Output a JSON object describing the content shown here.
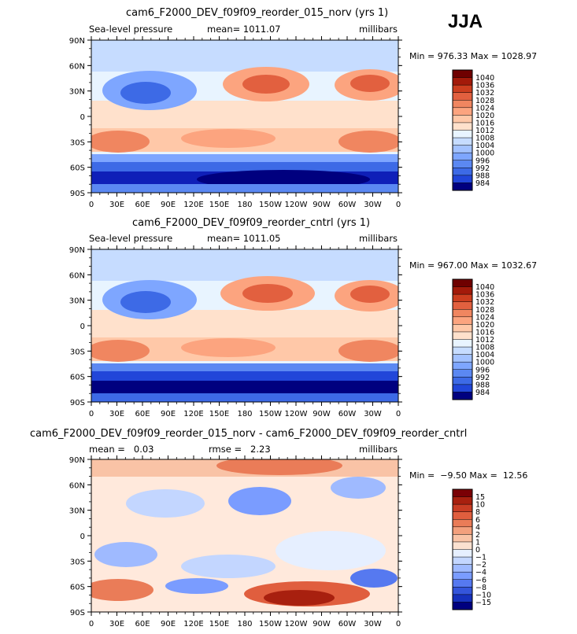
{
  "season": "JJA",
  "colors": {
    "slp_scale": [
      "#e8f4ff",
      "#c6dcff",
      "#a3c2ff",
      "#7ea6ff",
      "#5b88f2",
      "#3d6ae6",
      "#2146d9",
      "#0f1fb8",
      "#00007f",
      "#ffe1cc",
      "#ffc8a8",
      "#fca47f",
      "#f08660",
      "#e2603f",
      "#cc3e1f",
      "#a31a0a",
      "#6f0000"
    ],
    "diff_scale": [
      "#fbe1d0",
      "#f9c3a6",
      "#f3a07d",
      "#ea7c58",
      "#e05e3e",
      "#c93d24",
      "#a8200f",
      "#7a0005",
      "#e6efff",
      "#c3d6ff",
      "#9fbaff",
      "#7a9cff",
      "#5679f0",
      "#3455db",
      "#1631bd",
      "#00007f"
    ]
  },
  "panels": [
    {
      "title": "cam6_F2000_DEV_f09f09_reorder_015_norv (yrs 1)",
      "left_label": "Sea-level pressure",
      "mean_label": "mean= 1011.07",
      "units": "millibars",
      "minmax": "Min = 976.33 Max = 1028.97",
      "colorbar_labels": [
        "1040",
        "1036",
        "1032",
        "1028",
        "1024",
        "1020",
        "1016",
        "1012",
        "1008",
        "1004",
        "1000",
        "996",
        "992",
        "988",
        "984"
      ]
    },
    {
      "title": "cam6_F2000_DEV_f09f09_reorder_cntrl (yrs 1)",
      "left_label": "Sea-level pressure",
      "mean_label": "mean= 1011.05",
      "units": "millibars",
      "minmax": "Min = 967.00 Max = 1032.67",
      "colorbar_labels": [
        "1040",
        "1036",
        "1032",
        "1028",
        "1024",
        "1020",
        "1016",
        "1012",
        "1008",
        "1004",
        "1000",
        "996",
        "992",
        "988",
        "984"
      ]
    },
    {
      "title": "cam6_F2000_DEV_f09f09_reorder_015_norv - cam6_F2000_DEV_f09f09_reorder_cntrl",
      "left_label": "mean =   0.03",
      "mean_label": "rmse =   2.23",
      "units": "millibars",
      "minmax": "Min =  −9.50 Max =  12.56",
      "colorbar_labels": [
        "15",
        "10",
        "8",
        "6",
        "4",
        "2",
        "1",
        "0",
        "−1",
        "−2",
        "−4",
        "−6",
        "−8",
        "−10",
        "−15"
      ]
    }
  ],
  "axes": {
    "lat_labels": [
      "90N",
      "60N",
      "30N",
      "0",
      "30S",
      "60S",
      "90S"
    ],
    "lon_labels": [
      "0",
      "30E",
      "60E",
      "90E",
      "120E",
      "150E",
      "180",
      "150W",
      "120W",
      "90W",
      "60W",
      "30W",
      "0"
    ]
  },
  "chart_data": [
    {
      "type": "heatmap",
      "title": "cam6_F2000_DEV_f09f09_reorder_015_norv (yrs 1)",
      "variable": "Sea-level pressure",
      "units": "millibars",
      "mean": 1011.07,
      "min": 976.33,
      "max": 1028.97,
      "x_range": [
        0,
        360
      ],
      "y_range": [
        -90,
        90
      ],
      "levels": [
        984,
        988,
        992,
        996,
        1000,
        1004,
        1008,
        1012,
        1016,
        1020,
        1024,
        1028,
        1032,
        1036,
        1040
      ]
    },
    {
      "type": "heatmap",
      "title": "cam6_F2000_DEV_f09f09_reorder_cntrl (yrs 1)",
      "variable": "Sea-level pressure",
      "units": "millibars",
      "mean": 1011.05,
      "min": 967.0,
      "max": 1032.67,
      "x_range": [
        0,
        360
      ],
      "y_range": [
        -90,
        90
      ],
      "levels": [
        984,
        988,
        992,
        996,
        1000,
        1004,
        1008,
        1012,
        1016,
        1020,
        1024,
        1028,
        1032,
        1036,
        1040
      ]
    },
    {
      "type": "heatmap",
      "title": "cam6_F2000_DEV_f09f09_reorder_015_norv - cam6_F2000_DEV_f09f09_reorder_cntrl",
      "units": "millibars",
      "mean": 0.03,
      "rmse": 2.23,
      "min": -9.5,
      "max": 12.56,
      "x_range": [
        0,
        360
      ],
      "y_range": [
        -90,
        90
      ],
      "levels": [
        -15,
        -10,
        -8,
        -6,
        -4,
        -2,
        -1,
        0,
        1,
        2,
        4,
        6,
        8,
        10,
        15
      ]
    }
  ]
}
